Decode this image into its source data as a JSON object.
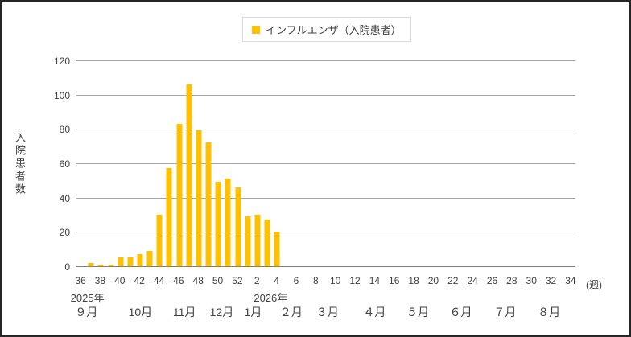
{
  "chart_data": {
    "type": "bar",
    "legend": "インフルエンザ（入院患者）",
    "ylabel": "入院患者数",
    "xunit": "(週)",
    "ylim": [
      0,
      120
    ],
    "yticks": [
      0,
      20,
      40,
      60,
      80,
      100,
      120
    ],
    "grid": true,
    "legend_position": "top-center",
    "weeks": [
      36,
      37,
      38,
      39,
      40,
      41,
      42,
      43,
      44,
      45,
      46,
      47,
      48,
      49,
      50,
      51,
      52,
      1,
      2,
      3,
      4,
      5,
      6,
      7,
      8,
      9,
      10,
      11,
      12,
      13,
      14,
      15,
      16,
      17,
      18,
      19,
      20,
      21,
      22,
      23,
      24,
      25,
      26,
      27,
      28,
      29,
      30,
      31,
      32,
      33,
      34
    ],
    "values": [
      0,
      2,
      1,
      1,
      5,
      5,
      7,
      9,
      30,
      57,
      83,
      106,
      79,
      72,
      49,
      51,
      46,
      29,
      30,
      27,
      20,
      0,
      0,
      0,
      0,
      0,
      0,
      0,
      0,
      0,
      0,
      0,
      0,
      0,
      0,
      0,
      0,
      0,
      0,
      0,
      0,
      0,
      0,
      0,
      0,
      0,
      0,
      0,
      0,
      0,
      0
    ],
    "x_tick_every": 2,
    "years": [
      {
        "label": "2025年",
        "at_index": 0.7
      },
      {
        "label": "2026年",
        "at_index": 19.4
      }
    ],
    "months": [
      {
        "label": "９月",
        "at_index": 0.6
      },
      {
        "label": "10月",
        "at_index": 6.1
      },
      {
        "label": "11月",
        "at_index": 10.6
      },
      {
        "label": "12月",
        "at_index": 14.4
      },
      {
        "label": "1月",
        "at_index": 17.6
      },
      {
        "label": "２月",
        "at_index": 21.5
      },
      {
        "label": "３月",
        "at_index": 25.2
      },
      {
        "label": "４月",
        "at_index": 30.0
      },
      {
        "label": "５月",
        "at_index": 34.4
      },
      {
        "label": "６月",
        "at_index": 38.8
      },
      {
        "label": "７月",
        "at_index": 43.3
      },
      {
        "label": "８月",
        "at_index": 47.8
      }
    ],
    "colors": {
      "bar": "#FFC000",
      "gridline": "#A6A6A6",
      "axis": "#808080",
      "text": "#404040",
      "legend_border": "#DCDCDC",
      "frame": "#262626"
    }
  }
}
